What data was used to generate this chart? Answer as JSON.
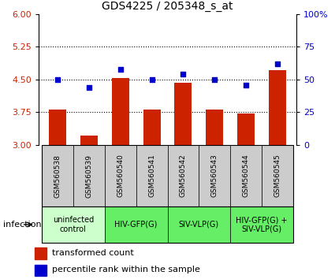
{
  "title": "GDS4225 / 205348_s_at",
  "samples": [
    "GSM560538",
    "GSM560539",
    "GSM560540",
    "GSM560541",
    "GSM560542",
    "GSM560543",
    "GSM560544",
    "GSM560545"
  ],
  "bar_values": [
    3.82,
    3.22,
    4.53,
    3.82,
    4.42,
    3.82,
    3.72,
    4.72
  ],
  "dot_values": [
    50,
    44,
    58,
    50,
    54,
    50,
    46,
    62
  ],
  "ylim_left": [
    3,
    6
  ],
  "ylim_right": [
    0,
    100
  ],
  "yticks_left": [
    3,
    3.75,
    4.5,
    5.25,
    6
  ],
  "yticks_right": [
    0,
    25,
    50,
    75,
    100
  ],
  "bar_color": "#cc2200",
  "dot_color": "#0000cc",
  "groups": [
    {
      "label": "uninfected\ncontrol",
      "indices": [
        0,
        1
      ],
      "color": "#ccffcc"
    },
    {
      "label": "HIV-GFP(G)",
      "indices": [
        2,
        3
      ],
      "color": "#66ee66"
    },
    {
      "label": "SIV-VLP(G)",
      "indices": [
        4,
        5
      ],
      "color": "#66ee66"
    },
    {
      "label": "HIV-GFP(G) +\nSIV-VLP(G)",
      "indices": [
        6,
        7
      ],
      "color": "#66ee66"
    }
  ],
  "infection_label": "infection",
  "legend_bar_label": "transformed count",
  "legend_dot_label": "percentile rank within the sample",
  "hline_color": "black",
  "bar_width": 0.55,
  "sample_box_color": "#cccccc"
}
